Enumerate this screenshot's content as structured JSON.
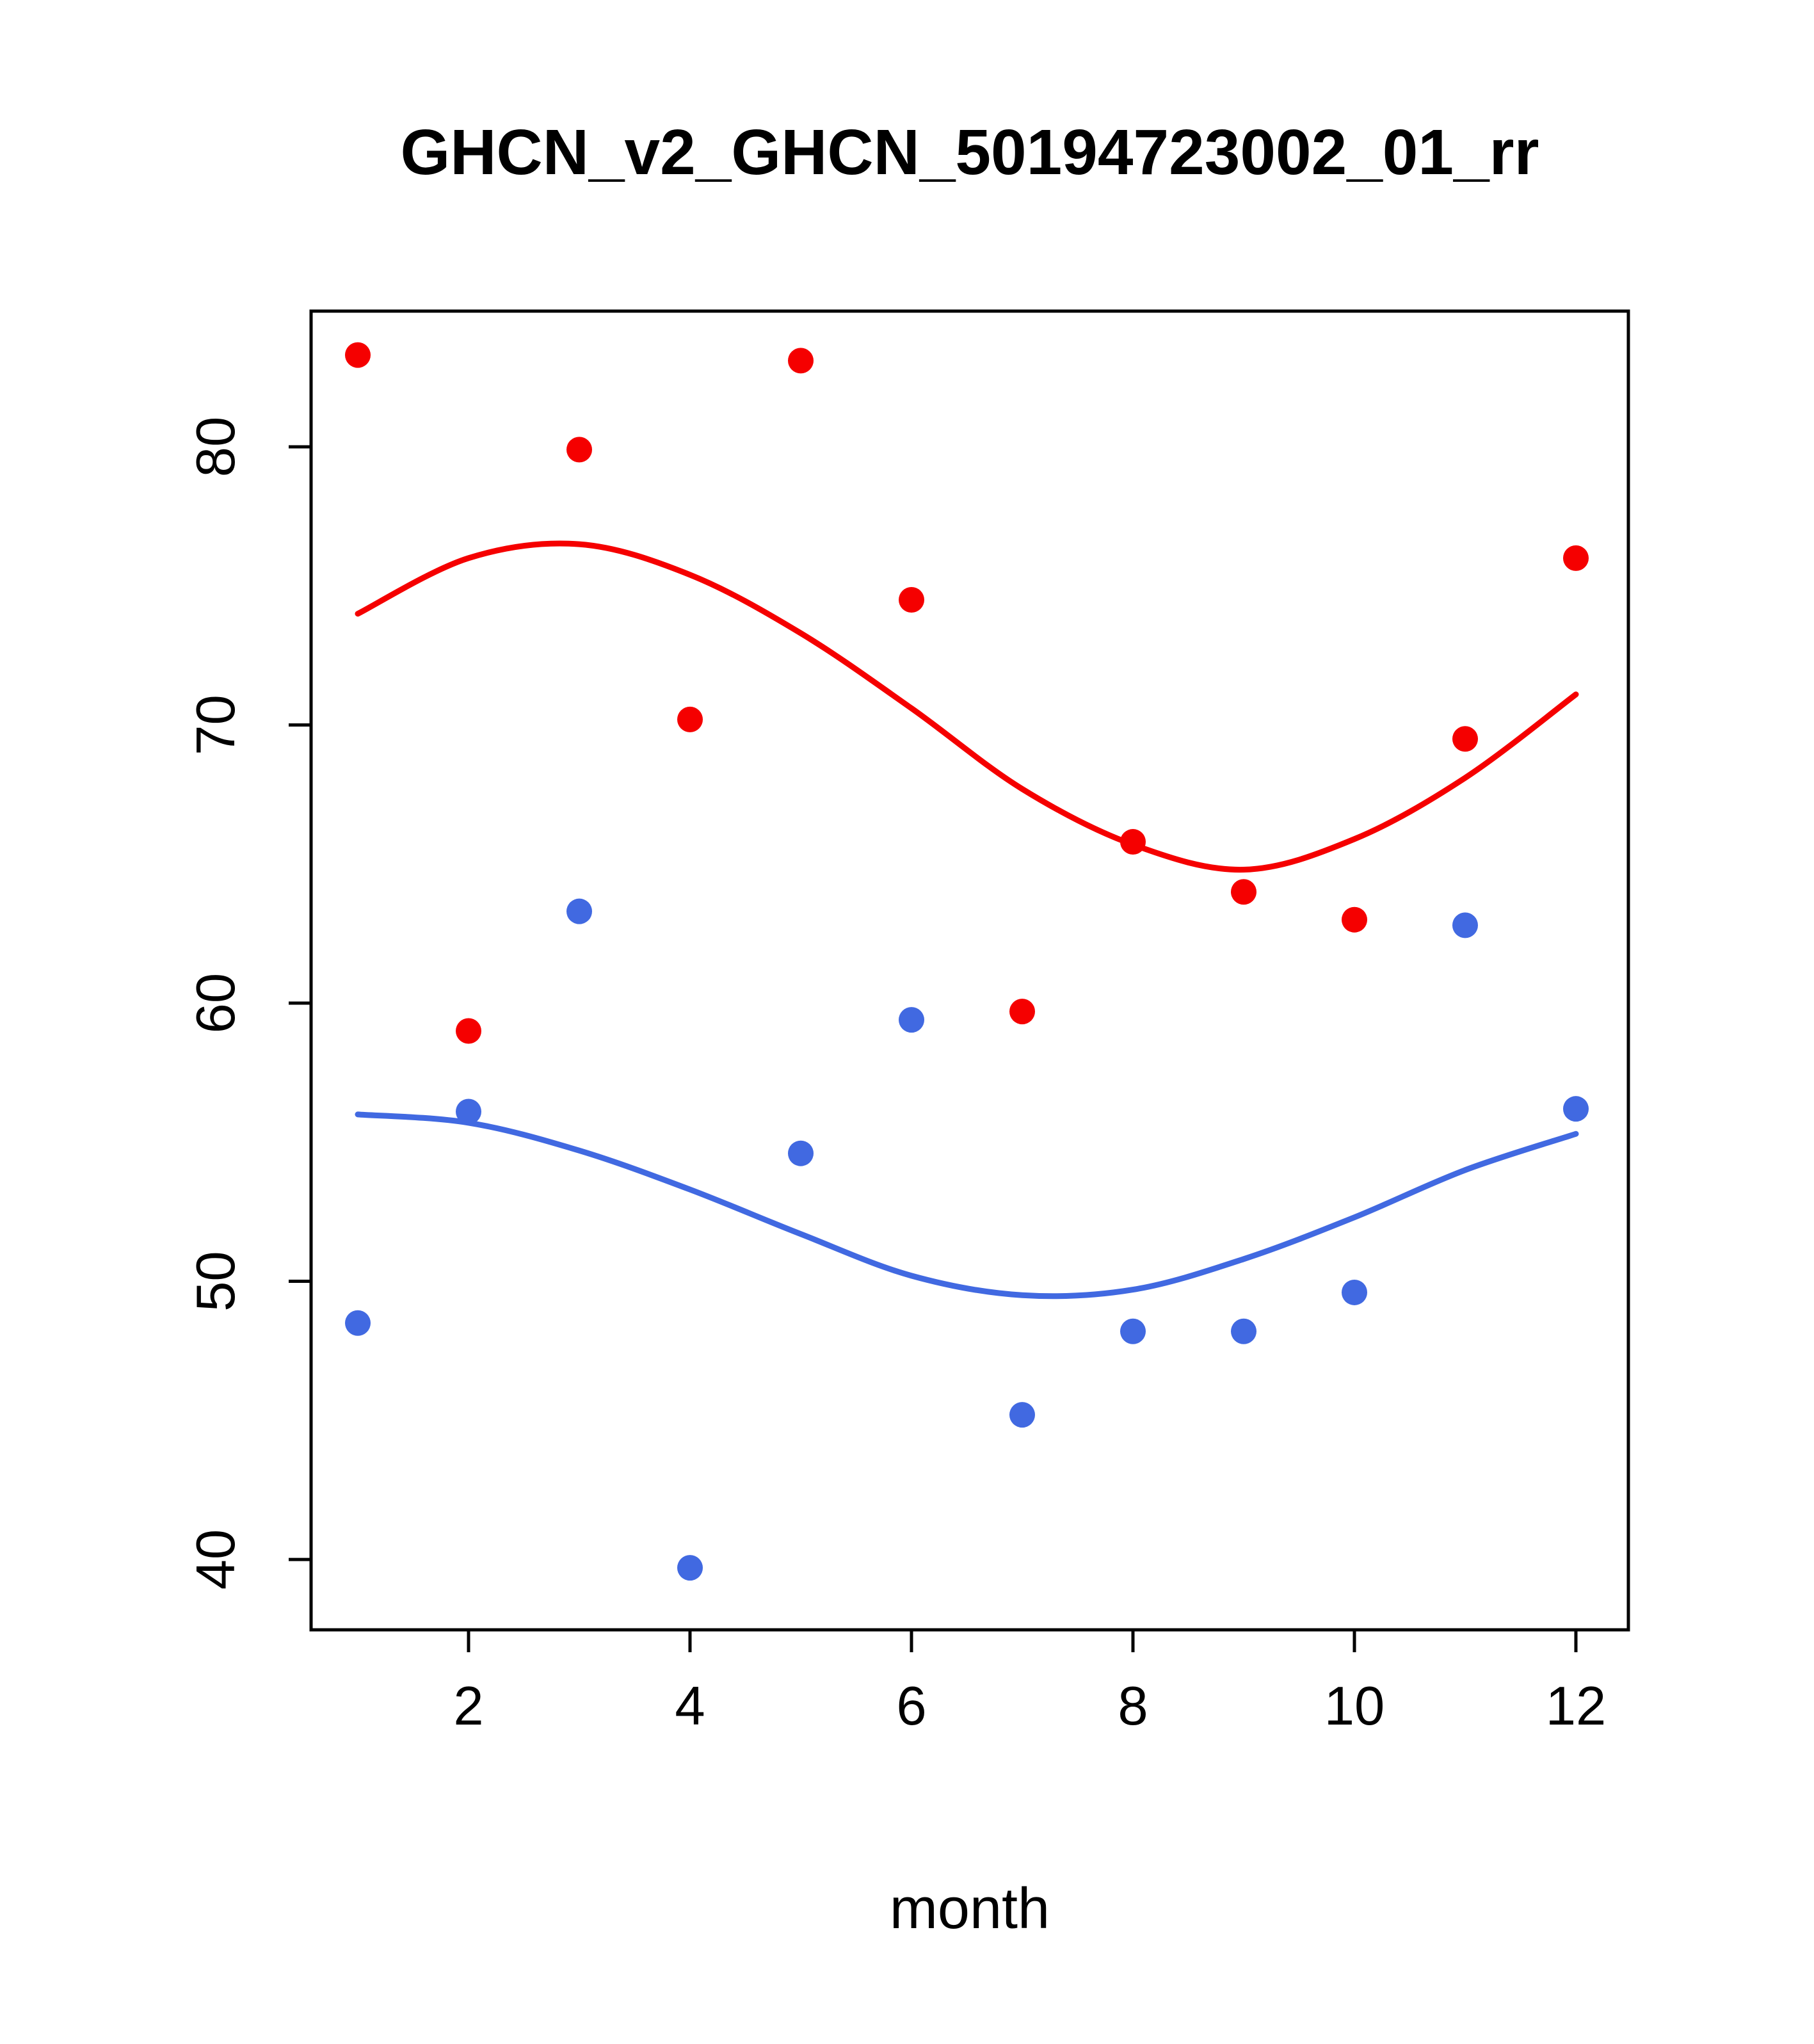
{
  "chart_data": {
    "type": "scatter",
    "title": "GHCN_v2_GHCN_50194723002_01_rr",
    "xlabel": "month",
    "ylabel": "",
    "x": [
      1,
      2,
      3,
      4,
      5,
      6,
      7,
      8,
      9,
      10,
      11,
      12
    ],
    "xticks": [
      2,
      4,
      6,
      8,
      10,
      12
    ],
    "yticks": [
      40,
      50,
      60,
      70,
      80
    ],
    "xlim": [
      0.578,
      12.474
    ],
    "ylim": [
      37.47,
      84.88
    ],
    "grid": false,
    "legend": "none",
    "colors": {
      "red": "#f50000",
      "blue": "#4169e1"
    },
    "series": [
      {
        "name": "red-points",
        "kind": "points",
        "color": "#f50000",
        "values": [
          83.3,
          59.0,
          79.9,
          70.2,
          83.1,
          74.5,
          59.7,
          65.8,
          64.0,
          63.0,
          69.5,
          76.0
        ]
      },
      {
        "name": "blue-points",
        "kind": "points",
        "color": "#4169e1",
        "values": [
          48.5,
          56.1,
          63.3,
          39.7,
          54.6,
          59.4,
          45.2,
          48.2,
          48.2,
          49.6,
          62.8,
          56.2
        ]
      },
      {
        "name": "red-smooth-line",
        "kind": "line",
        "color": "#f50000",
        "values": [
          74.0,
          76.0,
          76.5,
          75.4,
          73.3,
          70.6,
          67.7,
          65.7,
          64.8,
          65.9,
          68.1,
          71.1
        ]
      },
      {
        "name": "blue-smooth-line",
        "kind": "line",
        "color": "#4169e1",
        "values": [
          56.0,
          55.7,
          54.7,
          53.3,
          51.7,
          50.2,
          49.5,
          49.7,
          50.8,
          52.3,
          54.0,
          55.3
        ]
      }
    ]
  }
}
